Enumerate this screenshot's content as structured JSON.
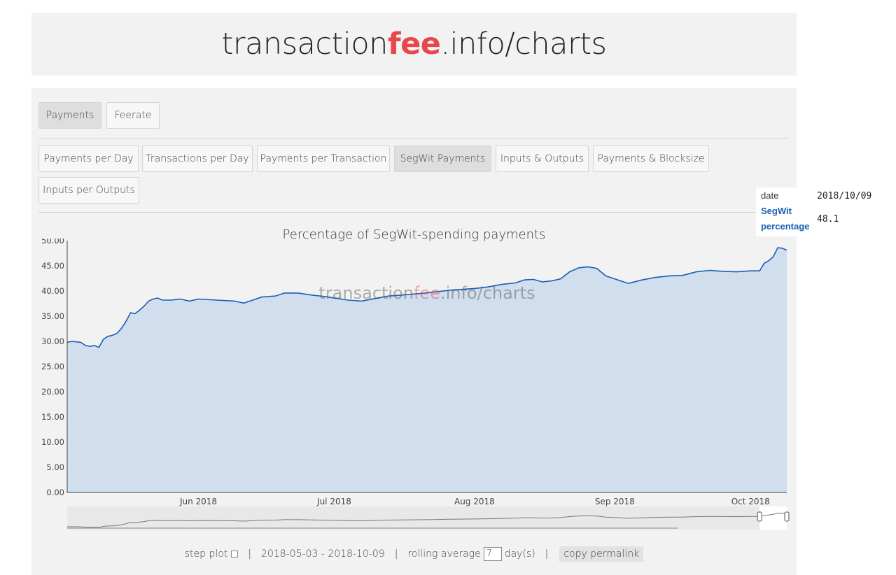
{
  "header": {
    "title_part1": "transaction",
    "title_accent": "fee",
    "title_part2": ".info/charts"
  },
  "category_tabs": [
    {
      "label": "Payments",
      "active": true
    },
    {
      "label": "Feerate",
      "active": false
    }
  ],
  "chart_tabs": [
    {
      "label": "Payments per Day",
      "active": false
    },
    {
      "label": "Transactions per Day",
      "active": false
    },
    {
      "label": "Payments per Transaction",
      "active": false
    },
    {
      "label": "SegWit Payments",
      "active": true
    },
    {
      "label": "Inputs & Outputs",
      "active": false
    },
    {
      "label": "Payments & Blocksize",
      "active": false
    },
    {
      "label": "Inputs per Outputs",
      "active": false
    }
  ],
  "tooltip": {
    "date_label": "date",
    "date_value": "2018/10/09",
    "series_label_line1": "SegWit",
    "series_label_line2": "percentage",
    "series_value": "48.1"
  },
  "footer": {
    "step_plot_label": "step plot",
    "date_range": "2018-05-03 - 2018-10-09",
    "rolling_label": "rolling average",
    "rolling_value": "7",
    "rolling_unit": "day(s)",
    "permalink_label": "copy permalink",
    "separator": "|"
  },
  "colors": {
    "accent": "#e8474d",
    "line": "#1a5fb4",
    "fill": "#d0deee"
  },
  "chart_data": {
    "type": "area",
    "title": "Percentage of SegWit-spending payments",
    "watermark": {
      "part1": "transaction",
      "accent": "fee",
      "part2": ".info/charts"
    },
    "x_start": "2018-05-03",
    "x_end": "2018-10-09",
    "ylim": [
      0,
      50
    ],
    "y_ticks": [
      "0.00",
      "5.00",
      "10.00",
      "15.00",
      "20.00",
      "25.00",
      "30.00",
      "35.00",
      "40.00",
      "45.00",
      "50.00"
    ],
    "x_ticks": [
      {
        "date": "2018-06-01",
        "label": "Jun 2018"
      },
      {
        "date": "2018-07-01",
        "label": "Jul 2018"
      },
      {
        "date": "2018-08-01",
        "label": "Aug 2018"
      },
      {
        "date": "2018-09-01",
        "label": "Sep 2018"
      },
      {
        "date": "2018-10-01",
        "label": "Oct 2018"
      }
    ],
    "series": [
      {
        "name": "SegWit percentage",
        "points": [
          [
            "2018-05-03",
            29.8
          ],
          [
            "2018-05-04",
            30.0
          ],
          [
            "2018-05-05",
            29.9
          ],
          [
            "2018-05-06",
            29.8
          ],
          [
            "2018-05-07",
            29.2
          ],
          [
            "2018-05-08",
            29.0
          ],
          [
            "2018-05-09",
            29.2
          ],
          [
            "2018-05-10",
            28.8
          ],
          [
            "2018-05-11",
            30.4
          ],
          [
            "2018-05-12",
            31.0
          ],
          [
            "2018-05-13",
            31.2
          ],
          [
            "2018-05-14",
            31.6
          ],
          [
            "2018-05-15",
            32.6
          ],
          [
            "2018-05-16",
            34.0
          ],
          [
            "2018-05-17",
            35.7
          ],
          [
            "2018-05-18",
            35.5
          ],
          [
            "2018-05-19",
            36.2
          ],
          [
            "2018-05-20",
            37.0
          ],
          [
            "2018-05-21",
            38.0
          ],
          [
            "2018-05-22",
            38.4
          ],
          [
            "2018-05-23",
            38.6
          ],
          [
            "2018-05-24",
            38.2
          ],
          [
            "2018-05-26",
            38.2
          ],
          [
            "2018-05-28",
            38.4
          ],
          [
            "2018-05-30",
            38.0
          ],
          [
            "2018-06-01",
            38.4
          ],
          [
            "2018-06-05",
            38.2
          ],
          [
            "2018-06-09",
            38.0
          ],
          [
            "2018-06-11",
            37.6
          ],
          [
            "2018-06-13",
            38.2
          ],
          [
            "2018-06-15",
            38.8
          ],
          [
            "2018-06-18",
            39.0
          ],
          [
            "2018-06-20",
            39.6
          ],
          [
            "2018-06-23",
            39.6
          ],
          [
            "2018-06-26",
            39.2
          ],
          [
            "2018-06-29",
            38.9
          ],
          [
            "2018-07-01",
            38.6
          ],
          [
            "2018-07-04",
            38.2
          ],
          [
            "2018-07-07",
            38.0
          ],
          [
            "2018-07-10",
            38.5
          ],
          [
            "2018-07-13",
            39.0
          ],
          [
            "2018-07-16",
            39.2
          ],
          [
            "2018-07-20",
            39.5
          ],
          [
            "2018-07-23",
            39.8
          ],
          [
            "2018-07-27",
            40.2
          ],
          [
            "2018-08-01",
            40.5
          ],
          [
            "2018-08-04",
            40.8
          ],
          [
            "2018-08-07",
            41.3
          ],
          [
            "2018-08-10",
            41.6
          ],
          [
            "2018-08-12",
            42.2
          ],
          [
            "2018-08-14",
            42.3
          ],
          [
            "2018-08-16",
            41.8
          ],
          [
            "2018-08-18",
            42.0
          ],
          [
            "2018-08-20",
            42.4
          ],
          [
            "2018-08-22",
            43.8
          ],
          [
            "2018-08-24",
            44.6
          ],
          [
            "2018-08-26",
            44.8
          ],
          [
            "2018-08-28",
            44.5
          ],
          [
            "2018-08-30",
            43.0
          ],
          [
            "2018-09-01",
            42.4
          ],
          [
            "2018-09-04",
            41.5
          ],
          [
            "2018-09-07",
            42.2
          ],
          [
            "2018-09-10",
            42.7
          ],
          [
            "2018-09-13",
            43.0
          ],
          [
            "2018-09-16",
            43.1
          ],
          [
            "2018-09-19",
            43.8
          ],
          [
            "2018-09-22",
            44.1
          ],
          [
            "2018-09-25",
            43.9
          ],
          [
            "2018-09-28",
            43.8
          ],
          [
            "2018-10-01",
            44.0
          ],
          [
            "2018-10-03",
            44.0
          ],
          [
            "2018-10-04",
            45.5
          ],
          [
            "2018-10-05",
            46.0
          ],
          [
            "2018-10-06",
            46.8
          ],
          [
            "2018-10-07",
            48.6
          ],
          [
            "2018-10-08",
            48.5
          ],
          [
            "2018-10-09",
            48.1
          ]
        ]
      }
    ]
  }
}
